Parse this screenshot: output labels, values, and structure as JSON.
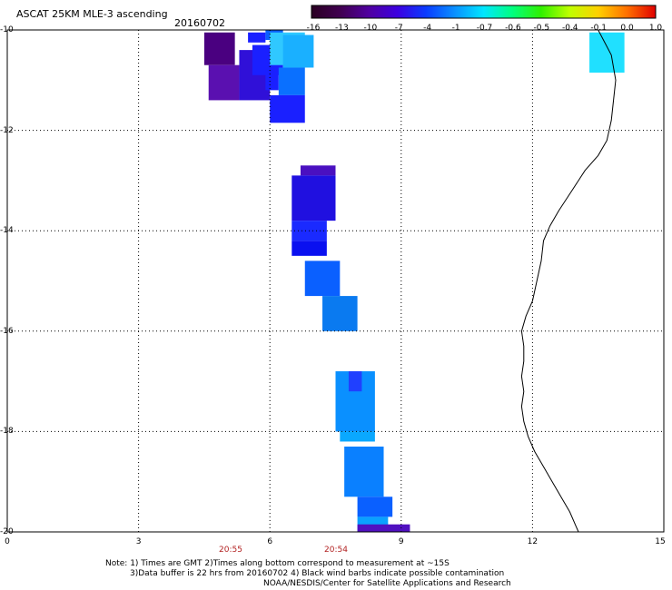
{
  "title": "ASCAT 25KM MLE-3 ascending",
  "date": "20160702",
  "colorbar": {
    "labels": [
      "-16",
      "-13",
      "-10",
      "-7",
      "-4",
      "-1",
      "-0.7",
      "-0.6",
      "-0.5",
      "-0.4",
      "-0.1",
      "0.0",
      "1.0"
    ],
    "colors": [
      "#2a0022",
      "#400050",
      "#5000a0",
      "#3c00e0",
      "#0a3cff",
      "#0a90ff",
      "#00e6ff",
      "#00ff80",
      "#30f000",
      "#c0ff00",
      "#ffd000",
      "#ff7000",
      "#e00000"
    ]
  },
  "axes": {
    "x_ticks": [
      "0",
      "3",
      "6",
      "9",
      "12",
      "15"
    ],
    "y_ticks": [
      "-10",
      "-12",
      "-14",
      "-16",
      "-18",
      "-20"
    ]
  },
  "times": [
    "20:55",
    "20:54"
  ],
  "notes": [
    "Note: 1) Times are GMT 2)Times along bottom correspond to measurement at ~15S",
    "3)Data buffer is 22 hrs from 20160702 4) Black wind barbs indicate possible contamination",
    "NOAA/NESDIS/Center for Satellite Applications and Research"
  ],
  "map_data": {
    "type": "swath_cells",
    "lon_range": [
      0,
      15
    ],
    "lat_range": [
      -20,
      -10
    ],
    "cells": [
      {
        "lon": [
          4.5,
          5.2
        ],
        "lat": [
          -10.7,
          -10.05
        ],
        "color": "#4a0080"
      },
      {
        "lon": [
          4.6,
          5.3
        ],
        "lat": [
          -11.4,
          -10.7
        ],
        "color": "#5a10b0"
      },
      {
        "lon": [
          5.3,
          6.0
        ],
        "lat": [
          -11.4,
          -10.4
        ],
        "color": "#3010d8"
      },
      {
        "lon": [
          5.6,
          6.3
        ],
        "lat": [
          -10.9,
          -10.3
        ],
        "color": "#1a20ff"
      },
      {
        "lon": [
          5.5,
          5.9
        ],
        "lat": [
          -10.25,
          -10.05
        ],
        "color": "#1a20ff"
      },
      {
        "lon": [
          5.9,
          6.3
        ],
        "lat": [
          -10.2,
          -10.0
        ],
        "color": "#0a60ff"
      },
      {
        "lon": [
          5.9,
          6.2
        ],
        "lat": [
          -11.2,
          -10.8
        ],
        "color": "#1a20ff"
      },
      {
        "lon": [
          6.0,
          6.8
        ],
        "lat": [
          -10.7,
          -10.05
        ],
        "color": "#30c8ff"
      },
      {
        "lon": [
          6.3,
          7.0
        ],
        "lat": [
          -10.75,
          -10.1
        ],
        "color": "#1ab0ff"
      },
      {
        "lon": [
          6.2,
          6.8
        ],
        "lat": [
          -11.3,
          -10.75
        ],
        "color": "#0a70ff"
      },
      {
        "lon": [
          6.0,
          6.8
        ],
        "lat": [
          -11.85,
          -11.3
        ],
        "color": "#1a20ff"
      },
      {
        "lon": [
          6.7,
          7.5
        ],
        "lat": [
          -12.9,
          -12.7
        ],
        "color": "#4a10c0"
      },
      {
        "lon": [
          6.5,
          7.5
        ],
        "lat": [
          -13.8,
          -12.9
        ],
        "color": "#2010e0"
      },
      {
        "lon": [
          6.5,
          7.3
        ],
        "lat": [
          -14.2,
          -13.8
        ],
        "color": "#1a2aff"
      },
      {
        "lon": [
          6.5,
          7.3
        ],
        "lat": [
          -14.5,
          -14.2
        ],
        "color": "#0a10f0"
      },
      {
        "lon": [
          6.8,
          7.6
        ],
        "lat": [
          -15.3,
          -14.6
        ],
        "color": "#0a60ff"
      },
      {
        "lon": [
          7.2,
          8.0
        ],
        "lat": [
          -16.0,
          -15.3
        ],
        "color": "#0a7af0"
      },
      {
        "lon": [
          7.5,
          8.4
        ],
        "lat": [
          -18.0,
          -16.8
        ],
        "color": "#0a90ff"
      },
      {
        "lon": [
          7.8,
          8.1
        ],
        "lat": [
          -17.2,
          -16.8
        ],
        "color": "#2040ff"
      },
      {
        "lon": [
          7.6,
          8.4
        ],
        "lat": [
          -18.2,
          -18.0
        ],
        "color": "#0aa8ff"
      },
      {
        "lon": [
          7.7,
          8.6
        ],
        "lat": [
          -19.3,
          -18.3
        ],
        "color": "#0a80ff"
      },
      {
        "lon": [
          8.0,
          8.8
        ],
        "lat": [
          -19.7,
          -19.3
        ],
        "color": "#0a60ff"
      },
      {
        "lon": [
          8.0,
          8.7
        ],
        "lat": [
          -20.0,
          -19.7
        ],
        "color": "#0aa0ff"
      },
      {
        "lon": [
          8.0,
          9.2
        ],
        "lat": [
          -20.0,
          -19.85
        ],
        "color": "#5010c0"
      },
      {
        "lon": [
          13.3,
          14.1
        ],
        "lat": [
          -10.85,
          -10.05
        ],
        "color": "#20e0ff"
      }
    ],
    "coastline": [
      [
        13.5,
        -10.0
      ],
      [
        13.8,
        -10.5
      ],
      [
        13.9,
        -11.0
      ],
      [
        13.85,
        -11.4
      ],
      [
        13.8,
        -11.8
      ],
      [
        13.7,
        -12.2
      ],
      [
        13.5,
        -12.5
      ],
      [
        13.2,
        -12.8
      ],
      [
        12.9,
        -13.2
      ],
      [
        12.6,
        -13.6
      ],
      [
        12.4,
        -13.9
      ],
      [
        12.25,
        -14.2
      ],
      [
        12.2,
        -14.6
      ],
      [
        12.1,
        -15.0
      ],
      [
        12.0,
        -15.4
      ],
      [
        11.85,
        -15.7
      ],
      [
        11.75,
        -16.0
      ],
      [
        11.8,
        -16.3
      ],
      [
        11.8,
        -16.6
      ],
      [
        11.75,
        -16.9
      ],
      [
        11.8,
        -17.2
      ],
      [
        11.75,
        -17.5
      ],
      [
        11.8,
        -17.8
      ],
      [
        11.9,
        -18.1
      ],
      [
        12.05,
        -18.4
      ],
      [
        12.25,
        -18.7
      ],
      [
        12.45,
        -19.0
      ],
      [
        12.65,
        -19.3
      ],
      [
        12.85,
        -19.6
      ],
      [
        13.05,
        -20.0
      ]
    ]
  }
}
